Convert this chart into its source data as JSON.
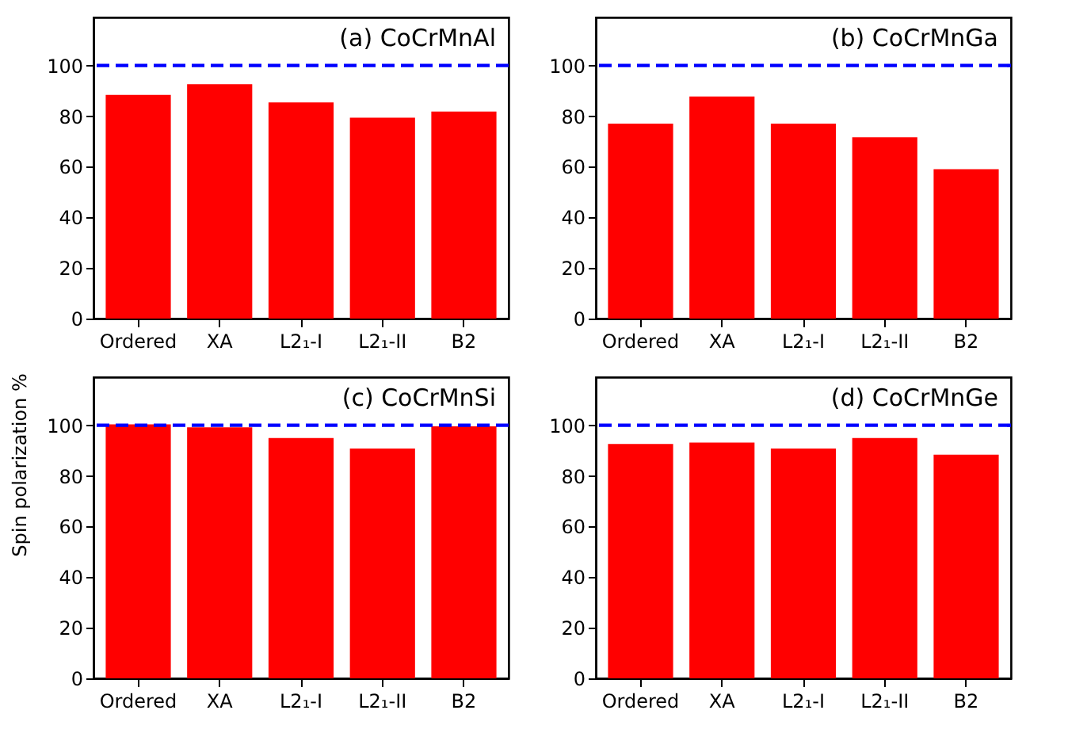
{
  "chart_data": [
    {
      "type": "bar",
      "title": "(a) CoCrMnAl",
      "categories": [
        "Ordered",
        "XA",
        "L2₁-I",
        "L2₁-II",
        "B2"
      ],
      "values": [
        88.4,
        92.6,
        85.4,
        79.4,
        81.8
      ],
      "color": "#ff0000",
      "ylim": [
        0,
        119
      ],
      "yticks": [
        0,
        20,
        40,
        60,
        80,
        100
      ],
      "grid": false,
      "ref_lines": [
        {
          "axis": "y",
          "value": 100,
          "color": "#0000ff",
          "line_style": "dashed"
        }
      ]
    },
    {
      "type": "bar",
      "title": "(b) CoCrMnGa",
      "categories": [
        "Ordered",
        "XA",
        "L2₁-I",
        "L2₁-II",
        "B2"
      ],
      "values": [
        77,
        87.8,
        77,
        71.6,
        59
      ],
      "color": "#ff0000",
      "ylim": [
        0,
        119
      ],
      "yticks": [
        0,
        20,
        40,
        60,
        80,
        100
      ],
      "grid": false,
      "ref_lines": [
        {
          "axis": "y",
          "value": 100,
          "color": "#0000ff",
          "line_style": "dashed"
        }
      ]
    },
    {
      "type": "bar",
      "title": "(c) CoCrMnSi",
      "ylabel": "Spin polarization %",
      "categories": [
        "Ordered",
        "XA",
        "L2₁-I",
        "L2₁-II",
        "B2"
      ],
      "values": [
        100.4,
        99.2,
        95,
        90.8,
        99.6
      ],
      "color": "#ff0000",
      "ylim": [
        0,
        119
      ],
      "yticks": [
        0,
        20,
        40,
        60,
        80,
        100
      ],
      "grid": false,
      "ref_lines": [
        {
          "axis": "y",
          "value": 100,
          "color": "#0000ff",
          "line_style": "dashed"
        }
      ]
    },
    {
      "type": "bar",
      "title": "(d) CoCrMnGe",
      "categories": [
        "Ordered",
        "XA",
        "L2₁-I",
        "L2₁-II",
        "B2"
      ],
      "values": [
        92.6,
        93.2,
        90.8,
        95,
        88.4
      ],
      "color": "#ff0000",
      "ylim": [
        0,
        119
      ],
      "yticks": [
        0,
        20,
        40,
        60,
        80,
        100
      ],
      "grid": false,
      "ref_lines": [
        {
          "axis": "y",
          "value": 100,
          "color": "#0000ff",
          "line_style": "dashed"
        }
      ]
    }
  ]
}
